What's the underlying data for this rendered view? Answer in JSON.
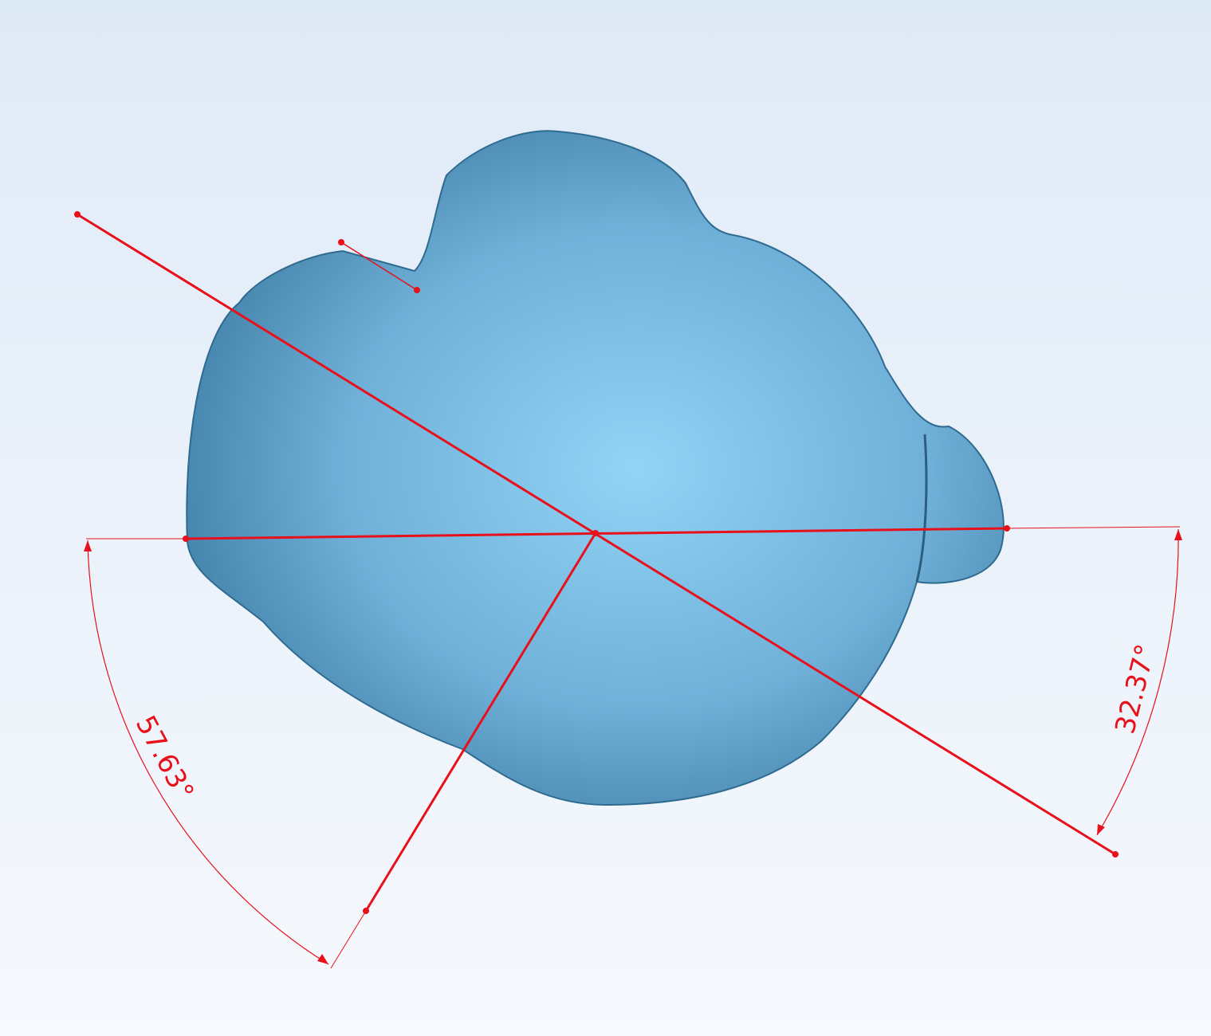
{
  "measurements": [
    {
      "label": "57.63°"
    },
    {
      "label": "32.37°"
    }
  ]
}
